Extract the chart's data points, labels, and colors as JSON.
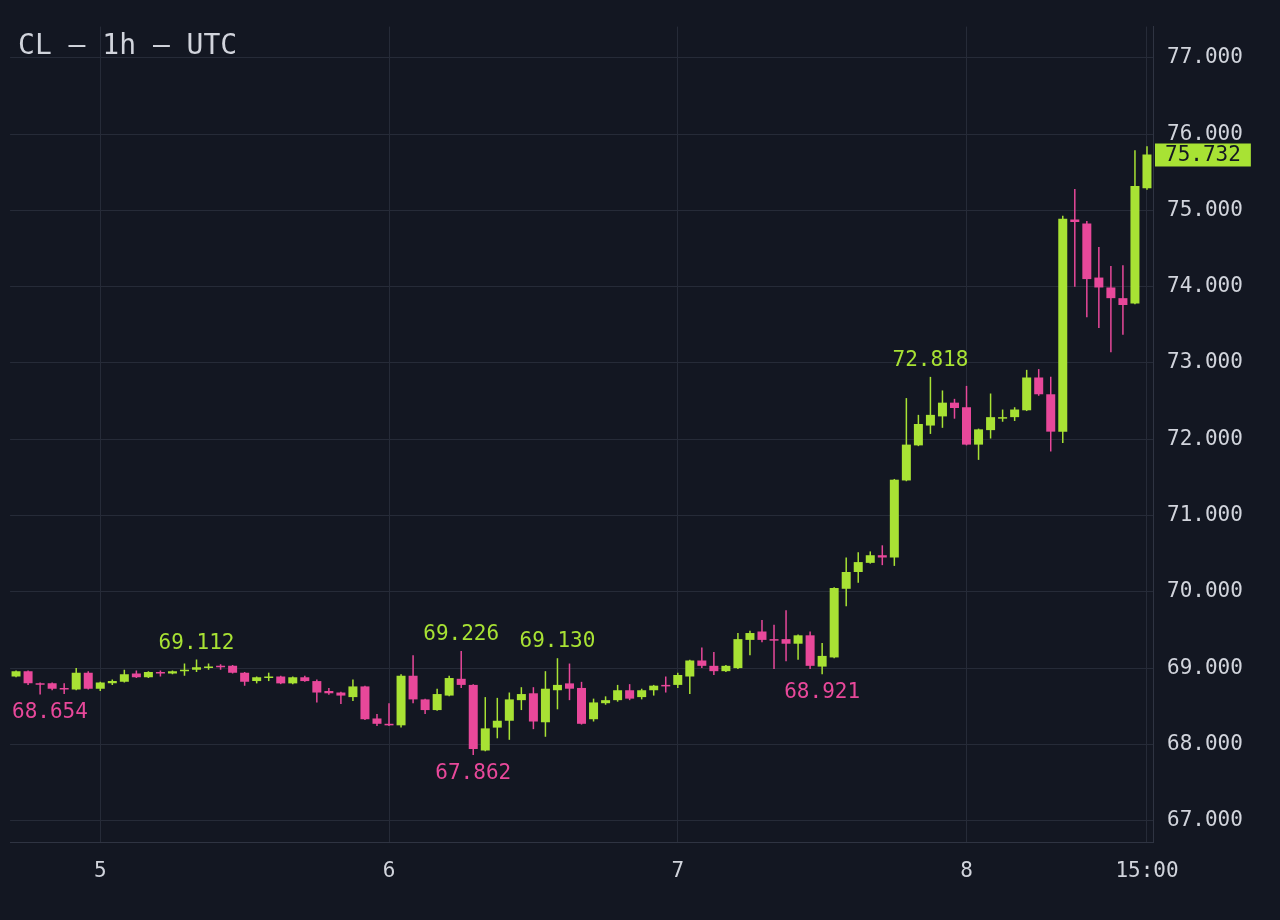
{
  "chart_data": {
    "type": "candlestick",
    "title": "CL — 1h — UTC",
    "categories": [
      null,
      null,
      null,
      null,
      null,
      null,
      null,
      "5",
      null,
      null,
      null,
      null,
      null,
      null,
      null,
      null,
      null,
      null,
      null,
      null,
      null,
      null,
      null,
      null,
      null,
      null,
      null,
      null,
      null,
      null,
      null,
      "6",
      null,
      null,
      null,
      null,
      null,
      null,
      null,
      null,
      null,
      null,
      null,
      null,
      null,
      null,
      null,
      null,
      null,
      null,
      null,
      null,
      null,
      null,
      null,
      "7",
      null,
      null,
      null,
      null,
      null,
      null,
      null,
      null,
      null,
      null,
      null,
      null,
      null,
      null,
      null,
      null,
      null,
      null,
      null,
      null,
      null,
      null,
      null,
      "8",
      null,
      null,
      null,
      null,
      null,
      null,
      null,
      null,
      null,
      null,
      null,
      null,
      null,
      null,
      "15:00"
    ],
    "ohlc": [
      [
        68.89,
        68.97,
        68.88,
        68.96
      ],
      [
        68.96,
        68.97,
        68.78,
        68.8
      ],
      [
        68.8,
        68.81,
        68.654,
        68.79
      ],
      [
        68.8,
        68.81,
        68.71,
        68.73
      ],
      [
        68.74,
        68.8,
        68.66,
        68.72
      ],
      [
        68.72,
        69.0,
        68.71,
        68.94
      ],
      [
        68.94,
        68.96,
        68.72,
        68.73
      ],
      [
        68.73,
        68.82,
        68.7,
        68.81
      ],
      [
        68.8,
        68.85,
        68.78,
        68.83
      ],
      [
        68.82,
        68.98,
        68.81,
        68.92
      ],
      [
        68.93,
        68.97,
        68.87,
        68.88
      ],
      [
        68.88,
        68.96,
        68.87,
        68.95
      ],
      [
        68.95,
        68.97,
        68.89,
        68.93
      ],
      [
        68.93,
        68.97,
        68.92,
        68.96
      ],
      [
        68.97,
        69.06,
        68.9,
        68.98
      ],
      [
        68.98,
        69.112,
        68.95,
        69.01
      ],
      [
        69.01,
        69.06,
        68.98,
        69.02
      ],
      [
        69.03,
        69.05,
        68.98,
        69.02
      ],
      [
        69.03,
        69.04,
        68.93,
        68.94
      ],
      [
        68.94,
        68.95,
        68.77,
        68.82
      ],
      [
        68.83,
        68.89,
        68.8,
        68.88
      ],
      [
        68.88,
        68.94,
        68.83,
        68.89
      ],
      [
        68.89,
        68.9,
        68.79,
        68.8
      ],
      [
        68.8,
        68.89,
        68.79,
        68.88
      ],
      [
        68.88,
        68.9,
        68.82,
        68.83
      ],
      [
        68.83,
        68.85,
        68.55,
        68.68
      ],
      [
        68.7,
        68.74,
        68.65,
        68.67
      ],
      [
        68.68,
        68.69,
        68.53,
        68.64
      ],
      [
        68.62,
        68.85,
        68.57,
        68.76
      ],
      [
        68.76,
        68.77,
        68.32,
        68.33
      ],
      [
        68.34,
        68.4,
        68.24,
        68.27
      ],
      [
        68.27,
        68.54,
        68.24,
        68.25
      ],
      [
        68.25,
        68.92,
        68.22,
        68.9
      ],
      [
        68.9,
        69.17,
        68.54,
        68.59
      ],
      [
        68.59,
        68.6,
        68.4,
        68.45
      ],
      [
        68.45,
        68.73,
        68.44,
        68.66
      ],
      [
        68.64,
        68.9,
        68.63,
        68.87
      ],
      [
        68.86,
        69.226,
        68.74,
        68.78
      ],
      [
        68.78,
        68.79,
        67.862,
        67.94
      ],
      [
        67.92,
        68.62,
        67.91,
        68.21
      ],
      [
        68.22,
        68.61,
        68.08,
        68.31
      ],
      [
        68.31,
        68.68,
        68.06,
        68.59
      ],
      [
        68.58,
        68.75,
        68.45,
        68.66
      ],
      [
        68.67,
        68.75,
        68.2,
        68.3
      ],
      [
        68.29,
        68.96,
        68.1,
        68.73
      ],
      [
        68.71,
        69.13,
        68.46,
        68.78
      ],
      [
        68.8,
        69.06,
        68.58,
        68.73
      ],
      [
        68.74,
        68.82,
        68.26,
        68.27
      ],
      [
        68.33,
        68.6,
        68.3,
        68.55
      ],
      [
        68.54,
        68.63,
        68.52,
        68.58
      ],
      [
        68.58,
        68.78,
        68.56,
        68.71
      ],
      [
        68.71,
        68.79,
        68.58,
        68.6
      ],
      [
        68.62,
        68.73,
        68.59,
        68.71
      ],
      [
        68.71,
        68.78,
        68.64,
        68.77
      ],
      [
        68.78,
        68.89,
        68.68,
        68.77
      ],
      [
        68.78,
        68.94,
        68.74,
        68.91
      ],
      [
        68.89,
        69.11,
        68.66,
        69.1
      ],
      [
        69.1,
        69.27,
        69.0,
        69.03
      ],
      [
        69.03,
        69.21,
        68.91,
        68.96
      ],
      [
        68.96,
        69.04,
        68.95,
        69.03
      ],
      [
        69.0,
        69.46,
        68.99,
        69.38
      ],
      [
        69.37,
        69.49,
        69.17,
        69.46
      ],
      [
        69.48,
        69.63,
        69.34,
        69.37
      ],
      [
        69.38,
        69.57,
        68.99,
        69.36
      ],
      [
        69.38,
        69.76,
        69.09,
        69.32
      ],
      [
        69.32,
        69.44,
        69.11,
        69.43
      ],
      [
        69.43,
        69.48,
        68.99,
        69.03
      ],
      [
        69.02,
        69.33,
        68.921,
        69.16
      ],
      [
        69.14,
        70.06,
        69.13,
        70.05
      ],
      [
        70.04,
        70.45,
        69.81,
        70.26
      ],
      [
        70.26,
        70.52,
        70.12,
        70.39
      ],
      [
        70.38,
        70.53,
        70.37,
        70.48
      ],
      [
        70.48,
        70.61,
        70.35,
        70.45
      ],
      [
        70.45,
        71.48,
        70.34,
        71.47
      ],
      [
        71.46,
        72.54,
        71.45,
        71.93
      ],
      [
        71.92,
        72.32,
        71.91,
        72.2
      ],
      [
        72.18,
        72.818,
        72.07,
        72.32
      ],
      [
        72.3,
        72.64,
        72.15,
        72.48
      ],
      [
        72.48,
        72.53,
        72.27,
        72.41
      ],
      [
        72.42,
        72.7,
        71.92,
        71.93
      ],
      [
        71.93,
        72.14,
        71.73,
        72.13
      ],
      [
        72.12,
        72.6,
        72.01,
        72.29
      ],
      [
        72.28,
        72.39,
        72.23,
        72.29
      ],
      [
        72.29,
        72.42,
        72.24,
        72.39
      ],
      [
        72.38,
        72.91,
        72.37,
        72.81
      ],
      [
        72.81,
        72.92,
        72.57,
        72.59
      ],
      [
        72.59,
        72.82,
        71.84,
        72.1
      ],
      [
        72.1,
        74.93,
        71.95,
        74.89
      ],
      [
        74.88,
        75.28,
        74.0,
        74.85
      ],
      [
        74.83,
        74.86,
        73.6,
        74.1
      ],
      [
        74.12,
        74.52,
        73.46,
        73.99
      ],
      [
        73.99,
        74.27,
        73.14,
        73.85
      ],
      [
        73.85,
        74.28,
        73.37,
        73.76
      ],
      [
        73.78,
        75.79,
        73.77,
        75.32
      ],
      [
        75.29,
        75.84,
        75.27,
        75.732
      ]
    ],
    "colors": [
      "#a8e234",
      "#e8489a",
      "#e8489a",
      "#e8489a",
      "#e8489a",
      "#a8e234",
      "#e8489a",
      "#a8e234",
      "#a8e234",
      "#a8e234",
      "#e8489a",
      "#a8e234",
      "#e8489a",
      "#a8e234",
      "#a8e234",
      "#a8e234",
      "#a8e234",
      "#e8489a",
      "#e8489a",
      "#e8489a",
      "#a8e234",
      "#a8e234",
      "#e8489a",
      "#a8e234",
      "#e8489a",
      "#e8489a",
      "#e8489a",
      "#e8489a",
      "#a8e234",
      "#e8489a",
      "#e8489a",
      "#e8489a",
      "#a8e234",
      "#e8489a",
      "#e8489a",
      "#a8e234",
      "#a8e234",
      "#e8489a",
      "#e8489a",
      "#a8e234",
      "#a8e234",
      "#a8e234",
      "#a8e234",
      "#e8489a",
      "#a8e234",
      "#a8e234",
      "#e8489a",
      "#e8489a",
      "#a8e234",
      "#a8e234",
      "#a8e234",
      "#e8489a",
      "#a8e234",
      "#a8e234",
      "#e8489a",
      "#a8e234",
      "#a8e234",
      "#e8489a",
      "#e8489a",
      "#a8e234",
      "#a8e234",
      "#a8e234",
      "#e8489a",
      "#e8489a",
      "#e8489a",
      "#a8e234",
      "#e8489a",
      "#a8e234",
      "#a8e234",
      "#a8e234",
      "#a8e234",
      "#a8e234",
      "#e8489a",
      "#a8e234",
      "#a8e234",
      "#a8e234",
      "#a8e234",
      "#a8e234",
      "#e8489a",
      "#e8489a",
      "#a8e234",
      "#a8e234",
      "#a8e234",
      "#a8e234",
      "#a8e234",
      "#e8489a",
      "#e8489a",
      "#a8e234",
      "#e8489a",
      "#e8489a",
      "#e8489a",
      "#e8489a",
      "#e8489a",
      "#a8e234",
      "#a8e234"
    ],
    "ylim": [
      66.71,
      77.41
    ],
    "yticks": [
      {
        "value": 67,
        "label": "67.000"
      },
      {
        "value": 68,
        "label": "68.000"
      },
      {
        "value": 69,
        "label": "69.000"
      },
      {
        "value": 70,
        "label": "70.000"
      },
      {
        "value": 71,
        "label": "71.000"
      },
      {
        "value": 72,
        "label": "72.000"
      },
      {
        "value": 73,
        "label": "73.000"
      },
      {
        "value": 74,
        "label": "74.000"
      },
      {
        "value": 75,
        "label": "75.000"
      },
      {
        "value": 76,
        "label": "76.000"
      },
      {
        "value": 77,
        "label": "77.000"
      }
    ],
    "grid": true,
    "annotations": [
      {
        "text": "68.654",
        "y": 68.654
      },
      {
        "text": "69.112",
        "y": 69.112
      },
      {
        "text": "69.226",
        "y": 69.226
      },
      {
        "text": "67.862",
        "y": 67.862
      },
      {
        "text": "69.130",
        "y": 69.13
      },
      {
        "text": "68.921",
        "y": 68.921
      },
      {
        "text": "72.818",
        "y": 72.818
      },
      "75.732"
    ]
  }
}
